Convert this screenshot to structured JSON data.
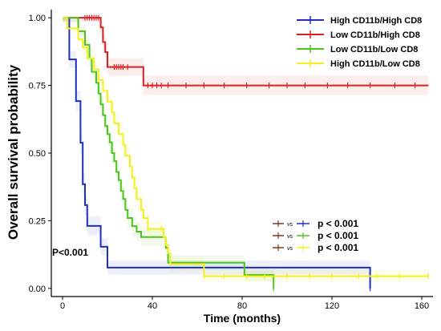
{
  "chart_data": {
    "type": "line",
    "subtype": "kaplan-meier",
    "xlabel": "Time (months)",
    "ylabel": "Overall survival probability",
    "xlim": [
      -5,
      165
    ],
    "ylim": [
      -0.03,
      1.03
    ],
    "xticks": [
      0,
      40,
      80,
      120,
      160
    ],
    "yticks": [
      0.0,
      0.25,
      0.5,
      0.75,
      1.0
    ],
    "ytick_labels": [
      "0.00",
      "0.25",
      "0.50",
      "0.75",
      "1.00"
    ],
    "grid": false,
    "legend_position": "top-right",
    "overall_pvalue": "P<0.001",
    "series": [
      {
        "name": "High CD11b/High CD8",
        "color": "#1f2fbf",
        "steps": [
          [
            0,
            1.0
          ],
          [
            3,
            0.846
          ],
          [
            6,
            0.692
          ],
          [
            8,
            0.538
          ],
          [
            9,
            0.385
          ],
          [
            10,
            0.308
          ],
          [
            11,
            0.231
          ],
          [
            17,
            0.154
          ],
          [
            20,
            0.077
          ],
          [
            137,
            0.077
          ],
          [
            137,
            0.0
          ]
        ],
        "censor": [
          137
        ]
      },
      {
        "name": "Low CD11b/High CD8",
        "color": "#e02020",
        "steps": [
          [
            0,
            1.0
          ],
          [
            17,
            0.964
          ],
          [
            18,
            0.91
          ],
          [
            19,
            0.873
          ],
          [
            20,
            0.818
          ],
          [
            36,
            0.75
          ],
          [
            163,
            0.75
          ]
        ],
        "censor": [
          10,
          11,
          12,
          13,
          14,
          15,
          16,
          23,
          24,
          25,
          26,
          27,
          29,
          38,
          40,
          42,
          44,
          47,
          55,
          63,
          72,
          82,
          92,
          100,
          108,
          118,
          127,
          137,
          148,
          157
        ]
      },
      {
        "name": "Low CD11b/Low CD8",
        "color": "#4ec41e",
        "steps": [
          [
            0,
            1.0
          ],
          [
            7,
            0.95
          ],
          [
            10,
            0.9
          ],
          [
            12,
            0.85
          ],
          [
            13,
            0.8
          ],
          [
            15,
            0.76
          ],
          [
            16,
            0.72
          ],
          [
            17,
            0.68
          ],
          [
            18,
            0.64
          ],
          [
            19,
            0.6
          ],
          [
            20,
            0.57
          ],
          [
            21,
            0.54
          ],
          [
            22,
            0.5
          ],
          [
            23,
            0.47
          ],
          [
            24,
            0.43
          ],
          [
            25,
            0.4
          ],
          [
            26,
            0.36
          ],
          [
            27,
            0.33
          ],
          [
            28,
            0.29
          ],
          [
            29,
            0.26
          ],
          [
            31,
            0.23
          ],
          [
            33,
            0.21
          ],
          [
            35,
            0.19
          ],
          [
            40,
            0.19
          ],
          [
            46,
            0.15
          ],
          [
            47,
            0.095
          ],
          [
            80,
            0.095
          ],
          [
            81,
            0.05
          ],
          [
            94,
            0.05
          ],
          [
            94,
            0.0
          ]
        ],
        "censor": [
          94
        ]
      },
      {
        "name": "High CD11b/Low CD8",
        "color": "#f4f020",
        "steps": [
          [
            0,
            1.0
          ],
          [
            2,
            0.96
          ],
          [
            7,
            0.92
          ],
          [
            9,
            0.89
          ],
          [
            11,
            0.85
          ],
          [
            14,
            0.81
          ],
          [
            16,
            0.77
          ],
          [
            18,
            0.73
          ],
          [
            20,
            0.69
          ],
          [
            22,
            0.65
          ],
          [
            23,
            0.61
          ],
          [
            25,
            0.57
          ],
          [
            27,
            0.53
          ],
          [
            28,
            0.49
          ],
          [
            30,
            0.45
          ],
          [
            31,
            0.41
          ],
          [
            32,
            0.37
          ],
          [
            33,
            0.33
          ],
          [
            35,
            0.29
          ],
          [
            36,
            0.26
          ],
          [
            38,
            0.22
          ],
          [
            45,
            0.19
          ],
          [
            46,
            0.16
          ],
          [
            47,
            0.13
          ],
          [
            48,
            0.09
          ],
          [
            62,
            0.09
          ],
          [
            63,
            0.045
          ],
          [
            163,
            0.045
          ]
        ],
        "censor": [
          38,
          44,
          63,
          72,
          82,
          90,
          100,
          110,
          120,
          132,
          140,
          150,
          163
        ]
      }
    ],
    "comparisons": [
      {
        "left_color": "#7a3b1a",
        "vs": "vs",
        "right_color": "#1f2fbf",
        "label": "p < 0.001"
      },
      {
        "left_color": "#7a3b1a",
        "vs": "vs",
        "right_color": "#4ec41e",
        "label": "p < 0.001"
      },
      {
        "left_color": "#7a3b1a",
        "vs": "vs",
        "right_color": "#f4f020",
        "label": "p < 0.001"
      }
    ]
  }
}
